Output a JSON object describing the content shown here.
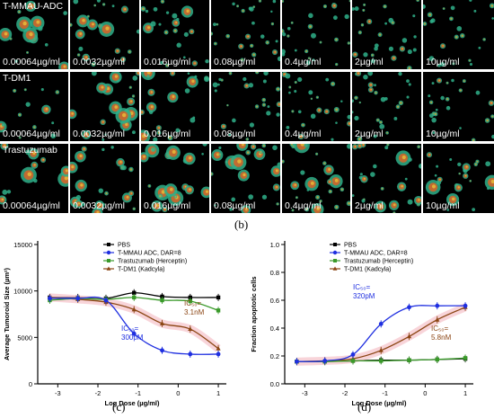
{
  "panel_b": {
    "label": "(b)",
    "row_labels": [
      "T-MMAU-ADC",
      "T-DM1",
      "Trastuzumab"
    ],
    "doses": [
      "0.00064µg/ml",
      "0.0032µg/ml",
      "0.016µg/ml",
      "0.08µg/ml",
      "0.4µg/ml",
      "2µg/ml",
      "10µg/ml"
    ]
  },
  "panel_c": {
    "label": "(c)"
  },
  "panel_d": {
    "label": "(d)"
  },
  "chart_data": [
    {
      "type": "line",
      "xlabel": "Log Dose (µg/ml)",
      "ylabel": "Average Tumoroid Size (µm²)",
      "xlim": [
        -3.5,
        1.2
      ],
      "ylim": [
        0,
        15000
      ],
      "xticks": [
        "-3",
        "-2",
        "-1",
        "0",
        "1"
      ],
      "yticks": [
        "0",
        "5000",
        "10000",
        "15000"
      ],
      "legend_position": "top-right",
      "x": [
        -3.2,
        -2.5,
        -1.8,
        -1.1,
        -0.4,
        0.3,
        1.0
      ],
      "series": [
        {
          "name": "PBS",
          "color": "#000000",
          "marker": "square",
          "values": [
            9300,
            9300,
            9200,
            9800,
            9400,
            9300,
            9300
          ]
        },
        {
          "name": "T-MMAU ADC, DAR=8",
          "color": "#1f2fe0",
          "marker": "circle",
          "values": [
            9200,
            9200,
            9000,
            5400,
            3600,
            3200,
            3200
          ]
        },
        {
          "name": "Trastuzumab (Herceptin)",
          "color": "#3a9a2a",
          "marker": "square",
          "values": [
            9000,
            9200,
            9100,
            9300,
            9000,
            8900,
            7900
          ]
        },
        {
          "name": "T-DM1 (Kadcyla)",
          "color": "#8b4513",
          "marker": "triangle",
          "values": [
            9300,
            9100,
            8800,
            8000,
            6500,
            5900,
            3800
          ]
        }
      ],
      "annotations": [
        {
          "text": "IC₅₀=",
          "text2": "300pM",
          "color": "#1f2fe0"
        },
        {
          "text": "IC₅₀=",
          "text2": "3.1nM",
          "color": "#8b4513"
        }
      ]
    },
    {
      "type": "line",
      "xlabel": "Log Dose (µg/ml)",
      "ylabel": "Fraction apoptotic cells",
      "xlim": [
        -3.5,
        1.2
      ],
      "ylim": [
        0,
        1.0
      ],
      "xticks": [
        "-3",
        "-2",
        "-1",
        "0",
        "1"
      ],
      "yticks": [
        "0.0",
        "0.2",
        "0.4",
        "0.6",
        "0.8",
        "1.0"
      ],
      "legend_position": "top-right",
      "x": [
        -3.2,
        -2.5,
        -1.8,
        -1.1,
        -0.4,
        0.3,
        1.0
      ],
      "series": [
        {
          "name": "PBS",
          "color": "#000000",
          "marker": "square",
          "values": [
            0.16,
            0.16,
            0.165,
            0.17,
            0.17,
            0.175,
            0.18
          ]
        },
        {
          "name": "T-MMAU ADC, DAR=8",
          "color": "#1f2fe0",
          "marker": "circle",
          "values": [
            0.16,
            0.165,
            0.21,
            0.43,
            0.55,
            0.56,
            0.56
          ]
        },
        {
          "name": "Trastuzumab (Herceptin)",
          "color": "#3a9a2a",
          "marker": "square",
          "values": [
            0.16,
            0.16,
            0.165,
            0.165,
            0.17,
            0.175,
            0.185
          ]
        },
        {
          "name": "T-DM1 (Kadcyla)",
          "color": "#8b4513",
          "marker": "triangle",
          "values": [
            0.16,
            0.165,
            0.18,
            0.24,
            0.34,
            0.46,
            0.55
          ]
        }
      ],
      "annotations": [
        {
          "text": "IC₅₀=",
          "text2": "320pM",
          "color": "#1f2fe0"
        },
        {
          "text": "IC₅₀=",
          "text2": "5.8nM",
          "color": "#8b4513"
        }
      ]
    }
  ]
}
